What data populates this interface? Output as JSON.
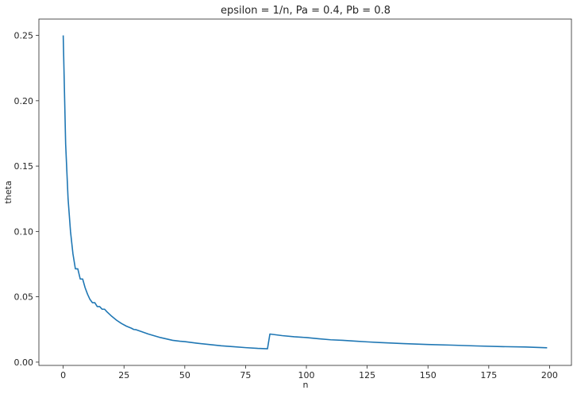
{
  "chart_data": {
    "type": "line",
    "title": "epsilon = 1/n, Pa = 0.4, Pb = 0.8",
    "xlabel": "n",
    "ylabel": "theta",
    "xlim": [
      -10,
      209
    ],
    "ylim": [
      -0.0025,
      0.2625
    ],
    "xticks": [
      0,
      25,
      50,
      75,
      100,
      125,
      150,
      175,
      200
    ],
    "xtick_labels": [
      "0",
      "25",
      "50",
      "75",
      "100",
      "125",
      "150",
      "175",
      "200"
    ],
    "yticks": [
      0.0,
      0.05,
      0.1,
      0.15,
      0.2,
      0.25
    ],
    "ytick_labels": [
      "0.00",
      "0.05",
      "0.10",
      "0.15",
      "0.20",
      "0.25"
    ],
    "grid": false,
    "legend": "none",
    "series": [
      {
        "color": "#1f77b4",
        "x": [
          0,
          1,
          2,
          3,
          4,
          5,
          6,
          7,
          8,
          9,
          10,
          11,
          12,
          13,
          14,
          15,
          16,
          17,
          18,
          20,
          22,
          24,
          26,
          28,
          29,
          30,
          32,
          35,
          40,
          45,
          48,
          50,
          55,
          60,
          65,
          70,
          75,
          80,
          84,
          85,
          90,
          95,
          100,
          105,
          110,
          115,
          120,
          125,
          130,
          140,
          150,
          160,
          170,
          180,
          190,
          199
        ],
        "y": [
          0.25,
          0.167,
          0.125,
          0.1,
          0.083,
          0.0714,
          0.0714,
          0.0636,
          0.0636,
          0.057,
          0.052,
          0.048,
          0.0455,
          0.0455,
          0.0425,
          0.0425,
          0.0405,
          0.0405,
          0.0385,
          0.035,
          0.032,
          0.0295,
          0.0275,
          0.026,
          0.025,
          0.0248,
          0.0235,
          0.0215,
          0.0188,
          0.0167,
          0.016,
          0.0157,
          0.0145,
          0.0135,
          0.0125,
          0.0118,
          0.0111,
          0.0105,
          0.0102,
          0.0215,
          0.0203,
          0.0194,
          0.0188,
          0.0179,
          0.0171,
          0.0167,
          0.0161,
          0.0155,
          0.015,
          0.0142,
          0.0135,
          0.013,
          0.0124,
          0.0119,
          0.0116,
          0.011
        ]
      }
    ]
  }
}
